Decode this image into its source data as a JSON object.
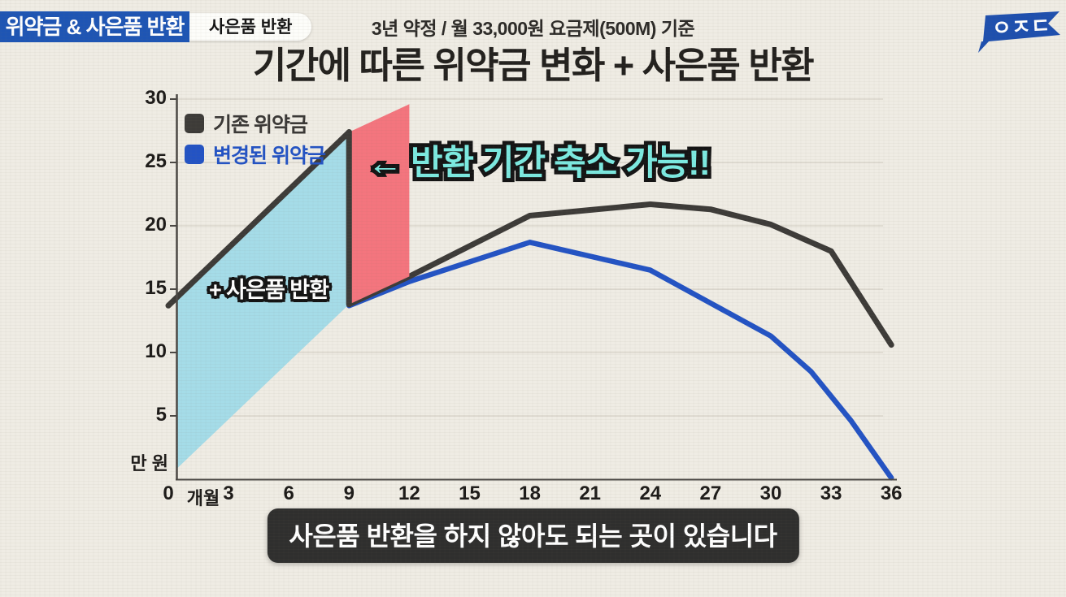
{
  "header": {
    "badge_primary": "위약금 & 사은품 반환",
    "badge_secondary": "사은품 반환",
    "subtitle": "3년 약정 / 월 33,000원 요금제(500M) 기준",
    "title": "기간에 따른 위약금 변화 + 사은품 반환",
    "logo_text": "ㅇㅈㄷ"
  },
  "legend": [
    {
      "label": "기존 위약금",
      "color": "#3d3b38"
    },
    {
      "label": "변경된 위약금",
      "color": "#2353c4"
    }
  ],
  "annotations": {
    "reduction_note": "← 반환 기간 축소 가능!!",
    "area_label": "+ 사은품 반환"
  },
  "caption": "사은품 반환을 하지 않아도 되는 곳이 있습니다",
  "colors": {
    "accent_blue": "#1e55b4",
    "line_dark": "#3d3b38",
    "line_blue": "#2353c4",
    "fill_cyan": "#a5dce8",
    "fill_pink": "#f4757e",
    "annotation_cyan": "#7ceae1",
    "caption_bg": "#262626",
    "background": "#efece4",
    "axis": "#4a4743"
  },
  "chart_data": {
    "type": "line",
    "title": "기간에 따른 위약금 변화 + 사은품 반환",
    "xlabel": "개월",
    "ylabel": "만 원",
    "origin_label": "0",
    "xlim": [
      0,
      36
    ],
    "ylim": [
      0,
      30
    ],
    "x_ticks": [
      3,
      6,
      9,
      12,
      15,
      18,
      21,
      24,
      27,
      30,
      33,
      36
    ],
    "y_ticks": [
      5,
      10,
      15,
      20,
      25,
      30
    ],
    "grid": "horizontal-faint",
    "legend_position": "top-left-inside",
    "series": [
      {
        "name": "기존 위약금",
        "color": "#3d3b38",
        "points": [
          [
            0,
            13.7
          ],
          [
            9,
            27.4
          ],
          [
            9,
            13.8
          ],
          [
            12,
            16.0
          ],
          [
            18,
            20.8
          ],
          [
            24,
            21.7
          ],
          [
            27,
            21.3
          ],
          [
            30,
            20.1
          ],
          [
            33,
            18.0
          ],
          [
            36,
            10.6
          ]
        ],
        "note": "수직 하락 구간: 9개월에 27.4에서 13.8로 떨어짐"
      },
      {
        "name": "변경된 위약금",
        "color": "#2353c4",
        "points": [
          [
            9,
            13.7
          ],
          [
            12,
            15.6
          ],
          [
            18,
            18.7
          ],
          [
            24,
            16.5
          ],
          [
            27,
            13.9
          ],
          [
            30,
            11.3
          ],
          [
            32,
            8.5
          ],
          [
            34,
            4.6
          ],
          [
            36,
            0.1
          ]
        ]
      }
    ],
    "areas": [
      {
        "name": "사은품 반환 영역",
        "color": "#a5dce8",
        "label": "+ 사은품 반환",
        "points": [
          [
            0.4,
            14.3
          ],
          [
            9,
            27.4
          ],
          [
            9,
            13.8
          ],
          [
            0.4,
            0.8
          ]
        ]
      },
      {
        "name": "반환 기간 축소 영역",
        "color": "#f4757e",
        "label": "← 반환 기간 축소 가능!!",
        "points": [
          [
            9,
            27.4
          ],
          [
            12,
            29.6
          ],
          [
            12,
            16.0
          ],
          [
            9,
            13.8
          ]
        ]
      }
    ],
    "drop_segment": {
      "series": "기존 위약금",
      "from": [
        9,
        27.4
      ],
      "to": [
        9,
        13.8
      ]
    }
  }
}
